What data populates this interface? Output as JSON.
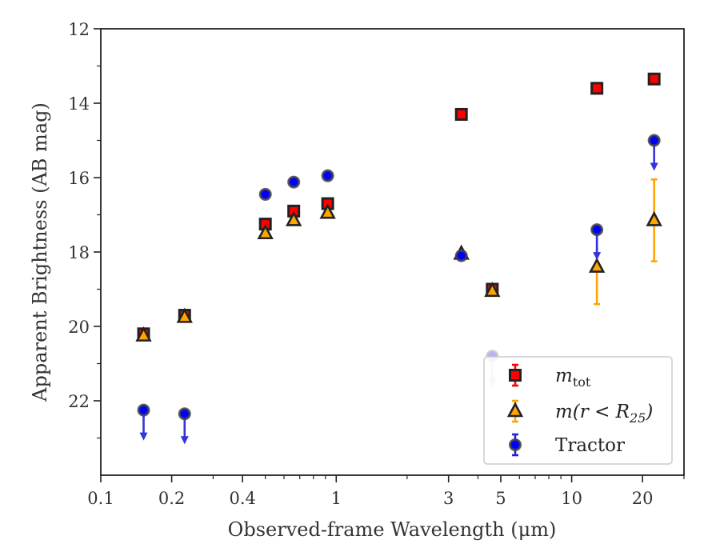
{
  "chart_data": {
    "type": "scatter",
    "title": "",
    "xlabel": "Observed-frame Wavelength (μm)",
    "ylabel": "Apparent Brightness (AB mag)",
    "x_scale": "log",
    "xlim": [
      0.1,
      30
    ],
    "ylim": [
      24,
      12
    ],
    "y_inverted": true,
    "x_ticks": [
      0.1,
      0.2,
      0.4,
      1,
      3,
      5,
      10,
      20
    ],
    "x_tick_labels": [
      "0.1",
      "0.2",
      "0.4",
      "1",
      "3",
      "5",
      "10",
      "20"
    ],
    "y_ticks": [
      12,
      14,
      16,
      18,
      20,
      22
    ],
    "y_tick_labels": [
      "12",
      "14",
      "16",
      "18",
      "20",
      "22"
    ],
    "grid": false,
    "legend_position": "lower-right",
    "series": [
      {
        "name": "m_tot",
        "legend_main": "m",
        "legend_sub": "tot",
        "marker": "square",
        "color": "#ff0000",
        "edge_color": "#222222",
        "points": [
          {
            "x": 0.152,
            "y": 20.2,
            "err": 0.1
          },
          {
            "x": 0.227,
            "y": 19.7,
            "err": 0.1
          },
          {
            "x": 0.5,
            "y": 17.25,
            "err": 0.1
          },
          {
            "x": 0.66,
            "y": 16.9,
            "err": 0.1
          },
          {
            "x": 0.92,
            "y": 16.7,
            "err": 0.1
          },
          {
            "x": 3.4,
            "y": 14.3,
            "err": 0.05
          },
          {
            "x": 4.6,
            "y": 19.0,
            "err": 0.1
          },
          {
            "x": 12.8,
            "y": 13.6,
            "err": 0.05
          },
          {
            "x": 22.4,
            "y": 13.35,
            "err": 0.05
          }
        ]
      },
      {
        "name": "m(r < R25)",
        "legend_main": "m(r < R",
        "legend_sub": "25",
        "legend_suffix": ")",
        "marker": "triangle",
        "color": "#ffa500",
        "edge_color": "#222222",
        "points": [
          {
            "x": 0.152,
            "y": 20.25,
            "err": 0.05
          },
          {
            "x": 0.227,
            "y": 19.75,
            "err": 0.05
          },
          {
            "x": 0.5,
            "y": 17.5,
            "err": 0.05
          },
          {
            "x": 0.66,
            "y": 17.15,
            "err": 0.05
          },
          {
            "x": 0.92,
            "y": 16.95,
            "err": 0.05
          },
          {
            "x": 3.4,
            "y": 18.05,
            "err": 0.05
          },
          {
            "x": 4.6,
            "y": 19.05,
            "err": 0.05
          },
          {
            "x": 12.8,
            "y": 18.4,
            "err": 1.0
          },
          {
            "x": 22.4,
            "y": 17.15,
            "err": 1.1
          }
        ]
      },
      {
        "name": "Tractor",
        "legend_main": "Tractor",
        "marker": "circle",
        "color": "#0000ff",
        "edge_color": "#444444",
        "points": [
          {
            "x": 0.152,
            "y": 22.25,
            "upper_limit": true
          },
          {
            "x": 0.227,
            "y": 22.35,
            "upper_limit": true
          },
          {
            "x": 0.5,
            "y": 16.45,
            "err": 0.05
          },
          {
            "x": 0.66,
            "y": 16.12,
            "err": 0.05
          },
          {
            "x": 0.92,
            "y": 15.95,
            "err": 0.05
          },
          {
            "x": 3.4,
            "y": 18.1,
            "err": 0.05
          },
          {
            "x": 4.6,
            "y": 20.8,
            "upper_limit": true,
            "faded": true
          },
          {
            "x": 12.8,
            "y": 17.4,
            "upper_limit": true
          },
          {
            "x": 22.4,
            "y": 15.0,
            "upper_limit": true
          }
        ]
      }
    ]
  }
}
